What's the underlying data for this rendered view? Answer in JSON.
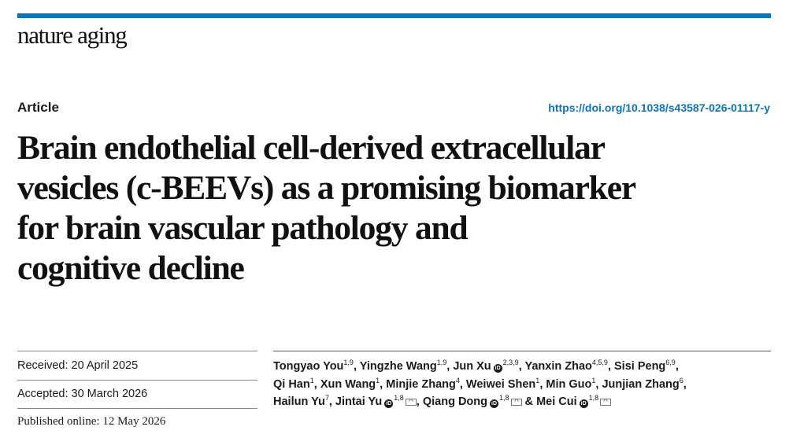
{
  "header": {
    "journal": "nature aging",
    "article_type": "Article",
    "doi": "https://doi.org/10.1038/s43587-026-01117-y",
    "accent_color": "#0a75ba"
  },
  "title_lines": [
    "Brain endothelial cell-derived extracellular",
    "vesicles (c-BEEVs) as a promising biomarker",
    "for brain vascular pathology and",
    "cognitive decline"
  ],
  "dates": {
    "received": "Received: 20 April 2025",
    "accepted": "Accepted: 30 March 2026",
    "published": "Published online: 12 May 2026"
  },
  "authors": [
    {
      "name": "Tongyao You",
      "aff": "1,9",
      "orcid": false,
      "mail": false,
      "sep": ", "
    },
    {
      "name": "Yingzhe Wang",
      "aff": "1,9",
      "orcid": false,
      "mail": false,
      "sep": ", "
    },
    {
      "name": "Jun Xu",
      "aff": "2,3,9",
      "orcid": true,
      "mail": false,
      "sep": ", "
    },
    {
      "name": "Yanxin Zhao",
      "aff": "4,5,9",
      "orcid": false,
      "mail": false,
      "sep": ", "
    },
    {
      "name": "Sisi Peng",
      "aff": "6,9",
      "orcid": false,
      "mail": false,
      "sep": ","
    },
    {
      "name": "Qi Han",
      "aff": "1",
      "orcid": false,
      "mail": false,
      "sep": ", "
    },
    {
      "name": "Xun Wang",
      "aff": "1",
      "orcid": false,
      "mail": false,
      "sep": ", "
    },
    {
      "name": "Minjie Zhang",
      "aff": "4",
      "orcid": false,
      "mail": false,
      "sep": ", "
    },
    {
      "name": "Weiwei Shen",
      "aff": "1",
      "orcid": false,
      "mail": false,
      "sep": ", "
    },
    {
      "name": "Min Guo",
      "aff": "1",
      "orcid": false,
      "mail": false,
      "sep": ", "
    },
    {
      "name": "Junjian Zhang",
      "aff": "6",
      "orcid": false,
      "mail": false,
      "sep": ","
    },
    {
      "name": "Hailun Yu",
      "aff": "7",
      "orcid": false,
      "mail": false,
      "sep": ", "
    },
    {
      "name": "Jintai Yu",
      "aff": "1,8",
      "orcid": true,
      "mail": true,
      "sep": ", "
    },
    {
      "name": "Qiang Dong",
      "aff": "1,8",
      "orcid": true,
      "mail": true,
      "sep": " & "
    },
    {
      "name": "Mei Cui",
      "aff": "1,8",
      "orcid": true,
      "mail": true,
      "sep": ""
    }
  ],
  "author_line_breaks": [
    5,
    11
  ],
  "icons": {
    "orcid": "orcid-icon",
    "mail": "mail-icon"
  }
}
